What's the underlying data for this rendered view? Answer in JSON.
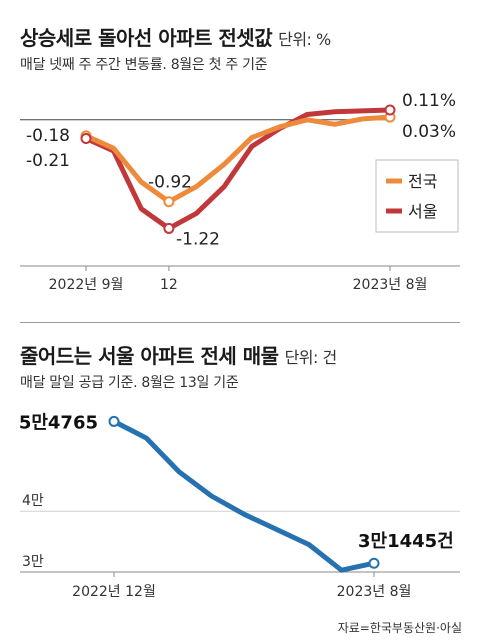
{
  "chart1": {
    "title": "상승세로 돌아선 아파트 전셋값",
    "unit": "단위: %",
    "subtitle": "매달 넷째 주 주간 변동률. 8월은 첫 주 기준"
  },
  "chart2": {
    "title": "줄어드는 서울 아파트 전세 매물",
    "unit": "단위: 건",
    "subtitle": "매달 말일 공급 기준. 8월은 13일 기준"
  },
  "source": "자료=한국부동산원·아실",
  "colors": {
    "national": "#ee8a3c",
    "seoul": "#c0383a",
    "listings": "#2671b0"
  },
  "chart_data": [
    {
      "type": "line",
      "title": "상승세로 돌아선 아파트 전셋값",
      "x": [
        "2022-09",
        "2022-10",
        "2022-11",
        "2022-12",
        "2023-01",
        "2023-02",
        "2023-03",
        "2023-04",
        "2023-05",
        "2023-06",
        "2023-07",
        "2023-08"
      ],
      "xticks": [
        "2022년 9월",
        "12",
        "2023년 8월"
      ],
      "xtick_positions": [
        "2022-09",
        "2022-12",
        "2023-08"
      ],
      "ylim": [
        -1.35,
        0.2
      ],
      "zero_line": true,
      "legend": "right",
      "series": [
        {
          "name": "전국",
          "color": "#ee8a3c",
          "values": [
            -0.18,
            -0.32,
            -0.7,
            -0.92,
            -0.75,
            -0.5,
            -0.2,
            -0.08,
            0.0,
            -0.05,
            0.01,
            0.03
          ]
        },
        {
          "name": "서울",
          "color": "#c0383a",
          "values": [
            -0.21,
            -0.35,
            -1.0,
            -1.22,
            -1.05,
            -0.75,
            -0.3,
            -0.1,
            0.06,
            0.09,
            0.1,
            0.11
          ]
        }
      ],
      "labels": [
        "-0.18",
        "-0.21",
        "-0.92",
        "-1.22",
        "0.11%",
        "0.03%"
      ]
    },
    {
      "type": "line",
      "title": "줄어드는 서울 아파트 전세 매물",
      "x": [
        "2022-12",
        "2023-01",
        "2023-02",
        "2023-03",
        "2023-04",
        "2023-05",
        "2023-06",
        "2023-07",
        "2023-08"
      ],
      "xticks": [
        "2022년 12월",
        "2023년 8월"
      ],
      "xtick_positions": [
        "2022-12",
        "2023-08"
      ],
      "yticks": [
        "3만",
        "4만"
      ],
      "ytick_values": [
        30000,
        40000
      ],
      "ylim": [
        30000,
        55000
      ],
      "series": [
        {
          "name": "",
          "color": "#2671b0",
          "values": [
            54765,
            52000,
            46500,
            42500,
            39500,
            37000,
            34500,
            30300,
            31445
          ]
        }
      ],
      "labels": [
        "5만4765",
        "3만1445건"
      ]
    }
  ]
}
